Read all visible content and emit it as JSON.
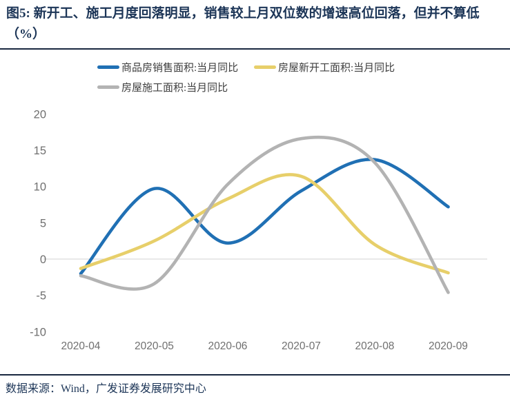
{
  "figure": {
    "title": "图5: 新开工、施工月度回落明显，销售较上月双位数的增速高位回落，但并不算低（%）",
    "source": "数据来源：Wind，广发证券发展研究中心",
    "accent_color": "#1c3557"
  },
  "legend": {
    "items": [
      {
        "label": "商品房销售面积:当月同比",
        "color": "#2070B4"
      },
      {
        "label": "房屋新开工面积:当月同比",
        "color": "#E7CF6A"
      },
      {
        "label": "房屋施工面积:当月同比",
        "color": "#B3B3B3"
      }
    ]
  },
  "chart_data": {
    "type": "line",
    "smooth": true,
    "title": "",
    "xlabel": "",
    "ylabel": "",
    "x": [
      "2020-04",
      "2020-05",
      "2020-06",
      "2020-07",
      "2020-08",
      "2020-09"
    ],
    "series": [
      {
        "name": "商品房销售面积:当月同比",
        "color": "#2070B4",
        "values": [
          -2.0,
          9.7,
          2.2,
          9.4,
          13.7,
          7.2
        ]
      },
      {
        "name": "房屋新开工面积:当月同比",
        "color": "#E7CF6A",
        "values": [
          -1.3,
          2.5,
          8.3,
          11.4,
          2.0,
          -1.9
        ]
      },
      {
        "name": "房屋施工面积:当月同比",
        "color": "#B3B3B3",
        "values": [
          -2.3,
          -3.4,
          10.3,
          16.6,
          13.3,
          -4.6
        ]
      }
    ],
    "ylim": [
      -10,
      20
    ],
    "yticks": [
      20,
      15,
      10,
      5,
      0,
      -5,
      -10
    ],
    "grid": "zero-line-only",
    "zero_line_color": "#D9D9D9",
    "axis_text_color": "#6F6F6F",
    "legend_position": "top-left"
  }
}
